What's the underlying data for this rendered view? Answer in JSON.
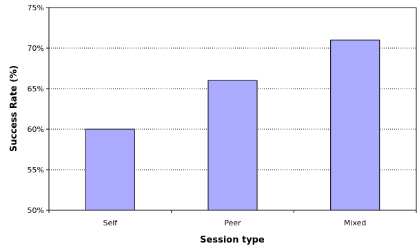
{
  "chart_data": {
    "type": "bar",
    "title": "",
    "xlabel": "Session type",
    "ylabel": "Success Rate (%)",
    "categories": [
      "Self",
      "Peer",
      "Mixed"
    ],
    "values": [
      60,
      66,
      71
    ],
    "ylim": [
      50,
      75
    ],
    "yticks": [
      50,
      55,
      60,
      65,
      70,
      75
    ],
    "ytick_labels": [
      "50%",
      "55%",
      "60%",
      "65%",
      "70%",
      "75%"
    ],
    "grid": true,
    "grid_style": "dotted",
    "legend": "none",
    "bar_color": "#aaaaff",
    "bar_edge_color": "#000000"
  }
}
